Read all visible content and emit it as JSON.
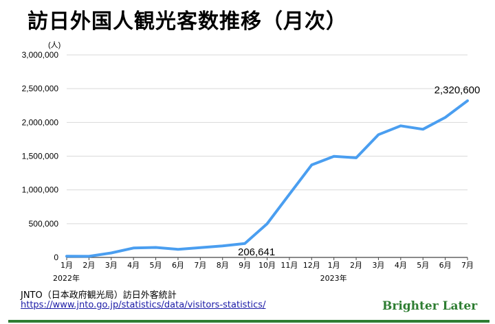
{
  "title": "訪日外国人観光客数推移（月次）",
  "source_text": "JNTO（日本政府観光局）訪日外客統計",
  "source_url": "https://www.jnto.go.jp/statistics/data/visitors-statistics/",
  "brand": "Brighter Later",
  "colors": {
    "line": "#4a9ef0",
    "grid": "#d9d9d9",
    "brand": "#2e7d32",
    "link": "#1a1aa6"
  },
  "chart_data": {
    "type": "line",
    "title": "訪日外国人観光客数推移（月次）",
    "unit_label": "(人)",
    "categories": [
      "1月",
      "2月",
      "3月",
      "4月",
      "5月",
      "6月",
      "7月",
      "8月",
      "9月",
      "10月",
      "11月",
      "12月",
      "1月",
      "2月",
      "3月",
      "4月",
      "5月",
      "6月",
      "7月"
    ],
    "year_labels": [
      {
        "index": 0,
        "label": "2022年"
      },
      {
        "index": 12,
        "label": "2023年"
      }
    ],
    "series": [
      {
        "values": [
          17766,
          16719,
          66121,
          139548,
          147046,
          120430,
          144578,
          169902,
          206641,
          498646,
          934500,
          1370114,
          1497472,
          1475455,
          1817917,
          1949100,
          1898900,
          2073300,
          2320600
        ]
      }
    ],
    "yticks": [
      0,
      500000,
      1000000,
      1500000,
      2000000,
      2500000,
      3000000
    ],
    "ytick_labels": [
      "0",
      "500,000",
      "1,000,000",
      "1,500,000",
      "2,000,000",
      "2,500,000",
      "3,000,000"
    ],
    "ylim": [
      0,
      3000000
    ],
    "grid": true,
    "annotations": [
      {
        "index": 8,
        "text": "206,641"
      },
      {
        "index": 18,
        "text": "2,320,600"
      }
    ]
  }
}
